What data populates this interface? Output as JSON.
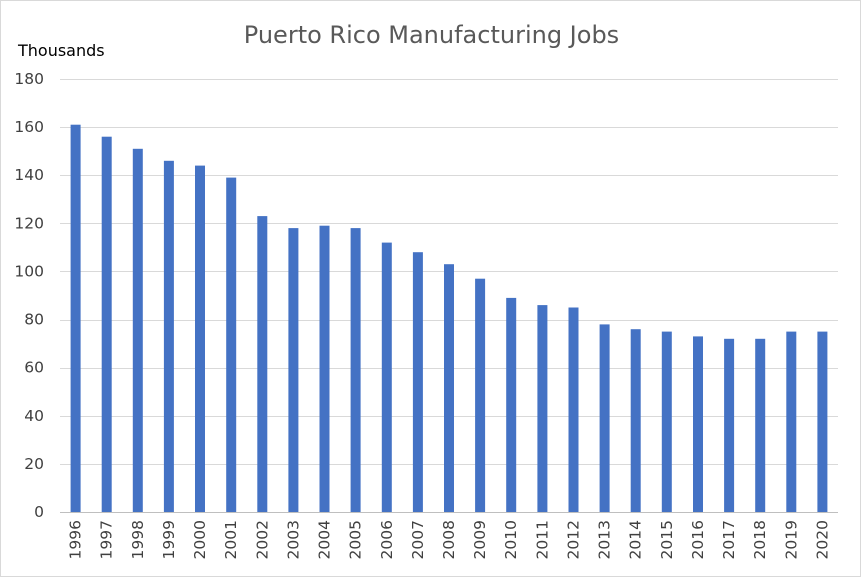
{
  "chart_data": {
    "type": "bar",
    "title": "Puerto Rico Manufacturing Jobs",
    "ylabel": "Thousands",
    "xlabel": "",
    "categories": [
      "1996",
      "1997",
      "1998",
      "1999",
      "2000",
      "2001",
      "2002",
      "2003",
      "2004",
      "2005",
      "2006",
      "2007",
      "2008",
      "2009",
      "2010",
      "2011",
      "2012",
      "2013",
      "2014",
      "2015",
      "2016",
      "2017",
      "2018",
      "2019",
      "2020"
    ],
    "values": [
      161,
      156,
      151,
      146,
      144,
      139,
      123,
      118,
      119,
      118,
      112,
      108,
      103,
      97,
      89,
      86,
      85,
      78,
      76,
      75,
      73,
      72,
      72,
      75,
      75
    ],
    "ylim": [
      0,
      180
    ],
    "y_ticks": [
      0,
      20,
      40,
      60,
      80,
      100,
      120,
      140,
      160,
      180
    ],
    "x_tick_rotation": "vertical",
    "grid": true,
    "legend": "none",
    "colors": {
      "bar": "#4472C4",
      "grid": "#d9d9d9",
      "axis": "#bfbfbf",
      "title": "#595959"
    }
  }
}
